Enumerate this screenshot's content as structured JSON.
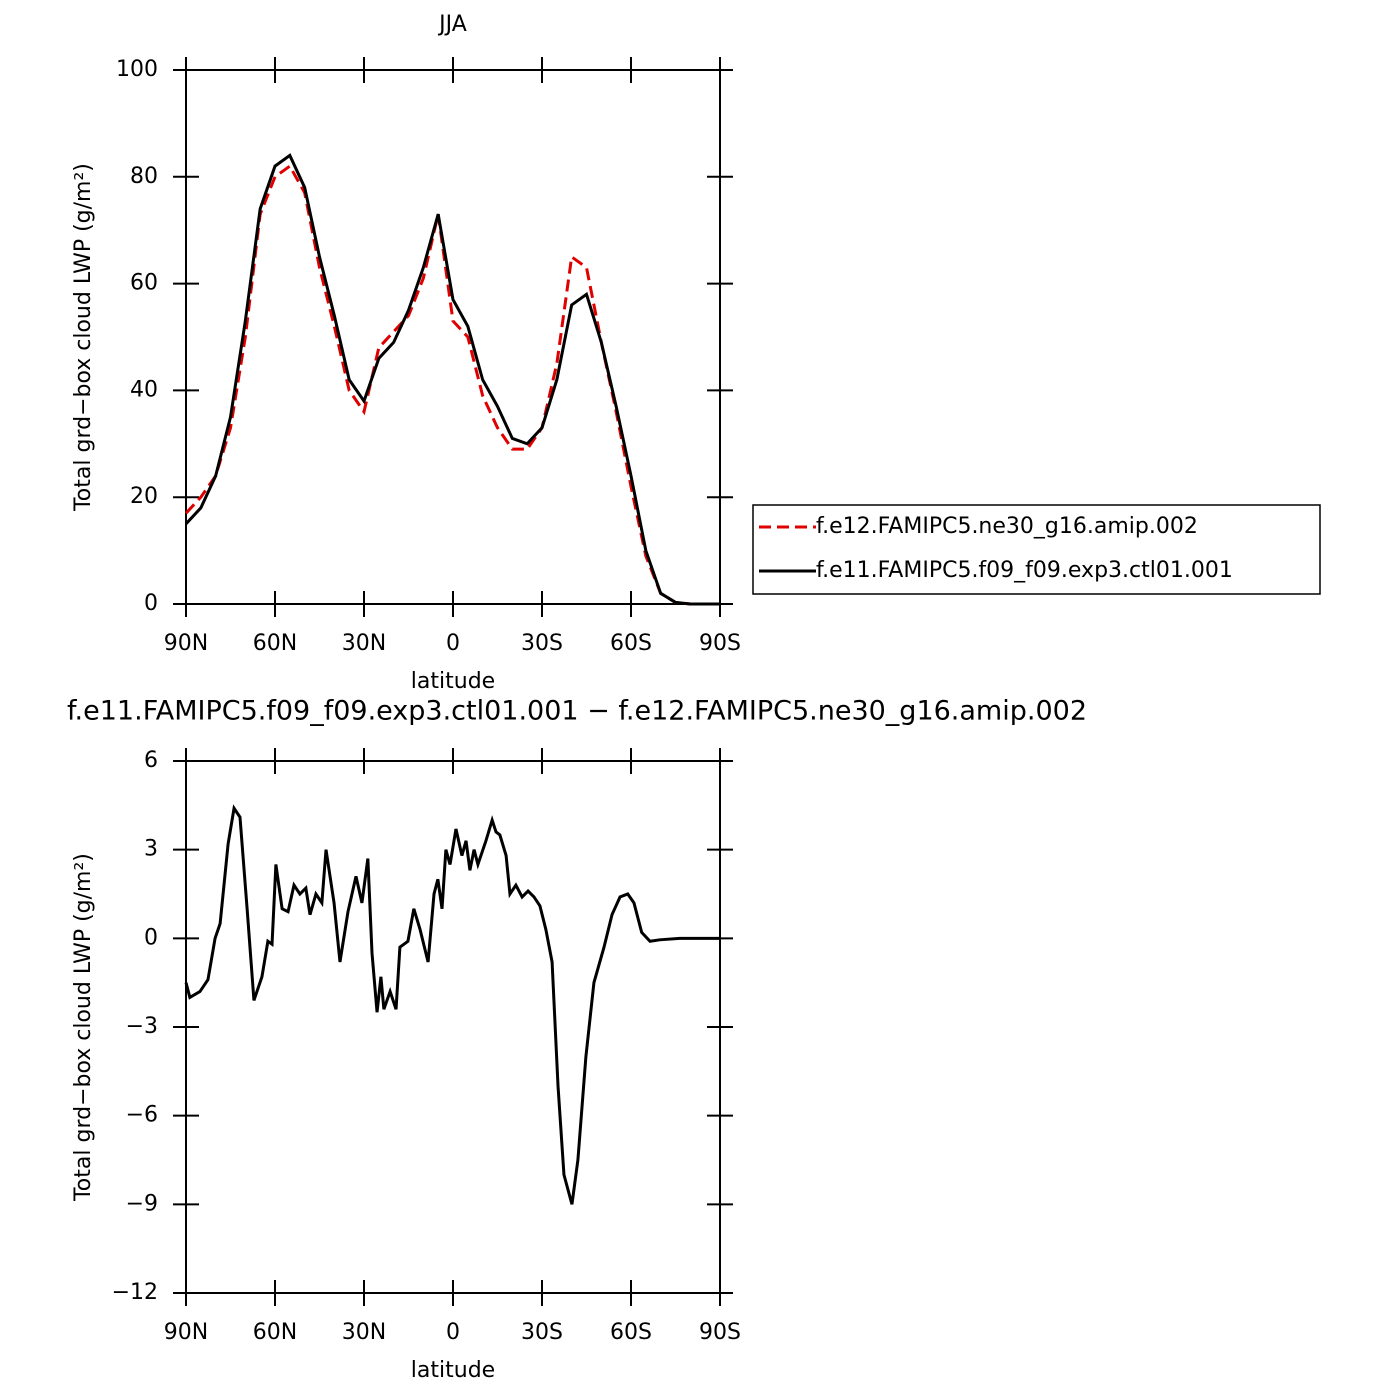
{
  "chart_data": [
    {
      "type": "line",
      "title": "JJA",
      "x_label": "latitude",
      "y_label": "Total grd−box cloud LWP (g/m²)",
      "xlim": [
        90,
        -90
      ],
      "xticks": [
        {
          "value": 90,
          "label": "90N"
        },
        {
          "value": 60,
          "label": "60N"
        },
        {
          "value": 30,
          "label": "30N"
        },
        0,
        {
          "value": -30,
          "label": "30S"
        },
        {
          "value": -60,
          "label": "60S"
        },
        {
          "value": -90,
          "label": "90S"
        }
      ],
      "ylim": [
        0,
        100
      ],
      "yticks": [
        0,
        20,
        40,
        60,
        80,
        100
      ],
      "legend": "right",
      "x": [
        90,
        85,
        80,
        75,
        70,
        65,
        60,
        55,
        50,
        45,
        40,
        35,
        30,
        25,
        20,
        15,
        10,
        5,
        0,
        -5,
        -10,
        -15,
        -20,
        -25,
        -30,
        -35,
        -40,
        -45,
        -50,
        -55,
        -60,
        -65,
        -70,
        -75,
        -80,
        -85,
        -90
      ],
      "series": [
        {
          "name": "f.e12.FAMIPC5.ne30_g16.amip.002",
          "color": "#e00000",
          "dashed": true,
          "values": [
            17,
            20,
            24,
            33,
            50,
            73,
            80,
            82,
            77,
            63,
            52,
            40,
            36,
            48,
            51,
            54,
            61,
            73,
            53,
            50,
            39,
            33,
            29,
            29,
            33,
            45,
            65,
            63,
            49,
            36,
            22,
            9,
            2,
            0.3,
            0,
            0,
            0
          ]
        },
        {
          "name": "f.e11.FAMIPC5.f09_f09.exp3.ctl01.001",
          "color": "#000000",
          "dashed": false,
          "values": [
            15,
            18,
            24,
            35,
            53,
            74,
            82,
            84,
            78,
            65,
            54,
            42,
            38,
            46,
            49,
            55,
            63,
            73,
            57,
            52,
            42,
            37,
            31,
            30,
            33,
            42,
            56,
            58,
            49,
            37,
            24,
            10,
            2,
            0.3,
            0,
            0,
            0
          ]
        }
      ]
    },
    {
      "type": "line",
      "title": "f.e11.FAMIPC5.f09_f09.exp3.ctl01.001 − f.e12.FAMIPC5.ne30_g16.amip.002",
      "x_label": "latitude",
      "y_label": "Total grd−box cloud LWP (g/m²)",
      "xlim": [
        90,
        -90
      ],
      "xticks": [
        {
          "value": 90,
          "label": "90N"
        },
        {
          "value": 60,
          "label": "60N"
        },
        {
          "value": 30,
          "label": "30N"
        },
        0,
        {
          "value": -30,
          "label": "30S"
        },
        {
          "value": -60,
          "label": "60S"
        },
        {
          "value": -90,
          "label": "90S"
        }
      ],
      "ylim": [
        -12,
        6
      ],
      "yticks": [
        {
          "value": -12,
          "label": "−12"
        },
        {
          "value": -9,
          "label": "−9"
        },
        {
          "value": -6,
          "label": "−6"
        },
        {
          "value": -3,
          "label": "−3"
        },
        0,
        3,
        6
      ],
      "x": [
        90,
        88.7,
        85.3,
        82.6,
        80.2,
        78.5,
        75.8,
        73.8,
        71.8,
        69.4,
        67.1,
        64.4,
        62.4,
        61,
        59.7,
        57.6,
        55.6,
        53.6,
        51.6,
        49.6,
        48.2,
        46.2,
        44.2,
        42.8,
        40.1,
        38.1,
        35.4,
        32.7,
        30.7,
        28.7,
        27.3,
        25.6,
        24.3,
        23.3,
        21.2,
        19.2,
        17.9,
        15.2,
        13.2,
        11.1,
        8.4,
        6.4,
        5.1,
        3.7,
        2.4,
        1,
        -1,
        -3,
        -4.4,
        -5.7,
        -7.1,
        -8.4,
        -11.1,
        -13.2,
        -14.5,
        -15.8,
        -17.9,
        -19.2,
        -21.2,
        -23.3,
        -25.3,
        -27.3,
        -29.3,
        -31.3,
        -33.4,
        -35.4,
        -37.4,
        -40.1,
        -42.1,
        -44.8,
        -47.5,
        -50.9,
        -53.6,
        -56.3,
        -58.9,
        -61,
        -63.6,
        -66.4,
        -69.7,
        -76.4,
        -90
      ],
      "series": [
        {
          "color": "#000000",
          "dashed": false,
          "values": [
            -1.5,
            -2,
            -1.8,
            -1.4,
            0,
            0.5,
            3.2,
            4.4,
            4.1,
            1,
            -2.1,
            -1.3,
            -0.1,
            -0.2,
            2.5,
            1,
            0.9,
            1.8,
            1.5,
            1.7,
            0.8,
            1.5,
            1.2,
            3,
            1.2,
            -0.8,
            0.9,
            2.1,
            1.2,
            2.7,
            -0.5,
            -2.5,
            -1.3,
            -2.4,
            -1.8,
            -2.4,
            -0.3,
            -0.1,
            1,
            0.3,
            -0.8,
            1.5,
            2,
            1,
            3,
            2.5,
            3.7,
            2.8,
            3.3,
            2.3,
            3,
            2.5,
            3.3,
            4,
            3.6,
            3.5,
            2.8,
            1.5,
            1.8,
            1.4,
            1.6,
            1.4,
            1.1,
            0.3,
            -0.8,
            -5,
            -8,
            -9,
            -7.5,
            -4,
            -1.5,
            -0.3,
            0.8,
            1.4,
            1.5,
            1.2,
            0.2,
            -0.1,
            -0.05,
            0,
            0
          ]
        }
      ]
    }
  ]
}
